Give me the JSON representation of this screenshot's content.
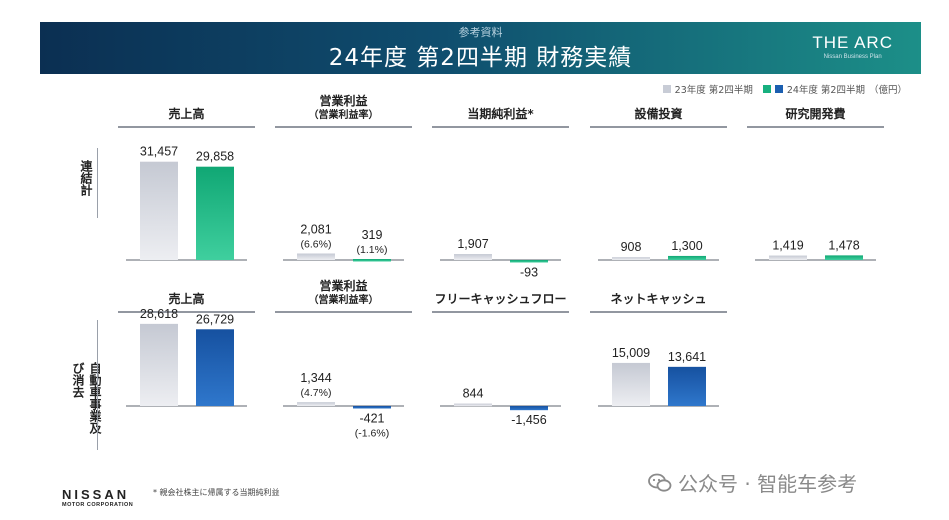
{
  "header": {
    "subtitle": "参考資料",
    "title": "24年度 第2四半期 財務実績",
    "logo_main": "THE ARC",
    "logo_sub": "Nissan Business Plan"
  },
  "legend": {
    "series1": "23年度 第2四半期",
    "series2": "24年度 第2四半期",
    "unit": "（億円）"
  },
  "rows": [
    {
      "label": "連結計"
    },
    {
      "label": "自動車事業及び消去"
    }
  ],
  "colors": {
    "prev": "#c8ccd6",
    "consolidated": "#17b07f",
    "auto": "#1b5fb0"
  },
  "chart_data": [
    {
      "type": "bar",
      "title": "売上高",
      "row": 0,
      "values": [
        31457,
        29858
      ],
      "labels": [
        "31,457",
        "29,858"
      ],
      "sublabels": [
        "",
        ""
      ]
    },
    {
      "type": "bar",
      "title": "営業利益",
      "subtitle": "（営業利益率）",
      "row": 0,
      "values": [
        2081,
        319
      ],
      "labels": [
        "2,081",
        "319"
      ],
      "sublabels": [
        "(6.6%)",
        "(1.1%)"
      ]
    },
    {
      "type": "bar",
      "title": "当期純利益*",
      "row": 0,
      "values": [
        1907,
        -93
      ],
      "labels": [
        "1,907",
        "-93"
      ],
      "sublabels": [
        "",
        ""
      ]
    },
    {
      "type": "bar",
      "title": "設備投資",
      "row": 0,
      "values": [
        908,
        1300
      ],
      "labels": [
        "908",
        "1,300"
      ],
      "sublabels": [
        "",
        ""
      ]
    },
    {
      "type": "bar",
      "title": "研究開発費",
      "row": 0,
      "values": [
        1419,
        1478
      ],
      "labels": [
        "1,419",
        "1,478"
      ],
      "sublabels": [
        "",
        ""
      ]
    },
    {
      "type": "bar",
      "title": "売上高",
      "row": 1,
      "values": [
        28618,
        26729
      ],
      "labels": [
        "28,618",
        "26,729"
      ],
      "sublabels": [
        "",
        ""
      ]
    },
    {
      "type": "bar",
      "title": "営業利益",
      "subtitle": "（営業利益率）",
      "row": 1,
      "values": [
        1344,
        -421
      ],
      "labels": [
        "1,344",
        "-421"
      ],
      "sublabels": [
        "(4.7%)",
        "(-1.6%)"
      ]
    },
    {
      "type": "bar",
      "title": "フリーキャッシュフロー",
      "row": 1,
      "values": [
        844,
        -1456
      ],
      "labels": [
        "844",
        "-1,456"
      ],
      "sublabels": [
        "",
        ""
      ]
    },
    {
      "type": "bar",
      "title": "ネットキャッシュ",
      "row": 1,
      "values": [
        15009,
        13641
      ],
      "labels": [
        "15,009",
        "13,641"
      ],
      "sublabels": [
        "",
        ""
      ]
    }
  ],
  "footnote": "* 親会社株主に帰属する当期純利益",
  "brand": {
    "name": "NISSAN",
    "sub": "MOTOR CORPORATION"
  },
  "watermark": "公众号 · 智能车参考"
}
